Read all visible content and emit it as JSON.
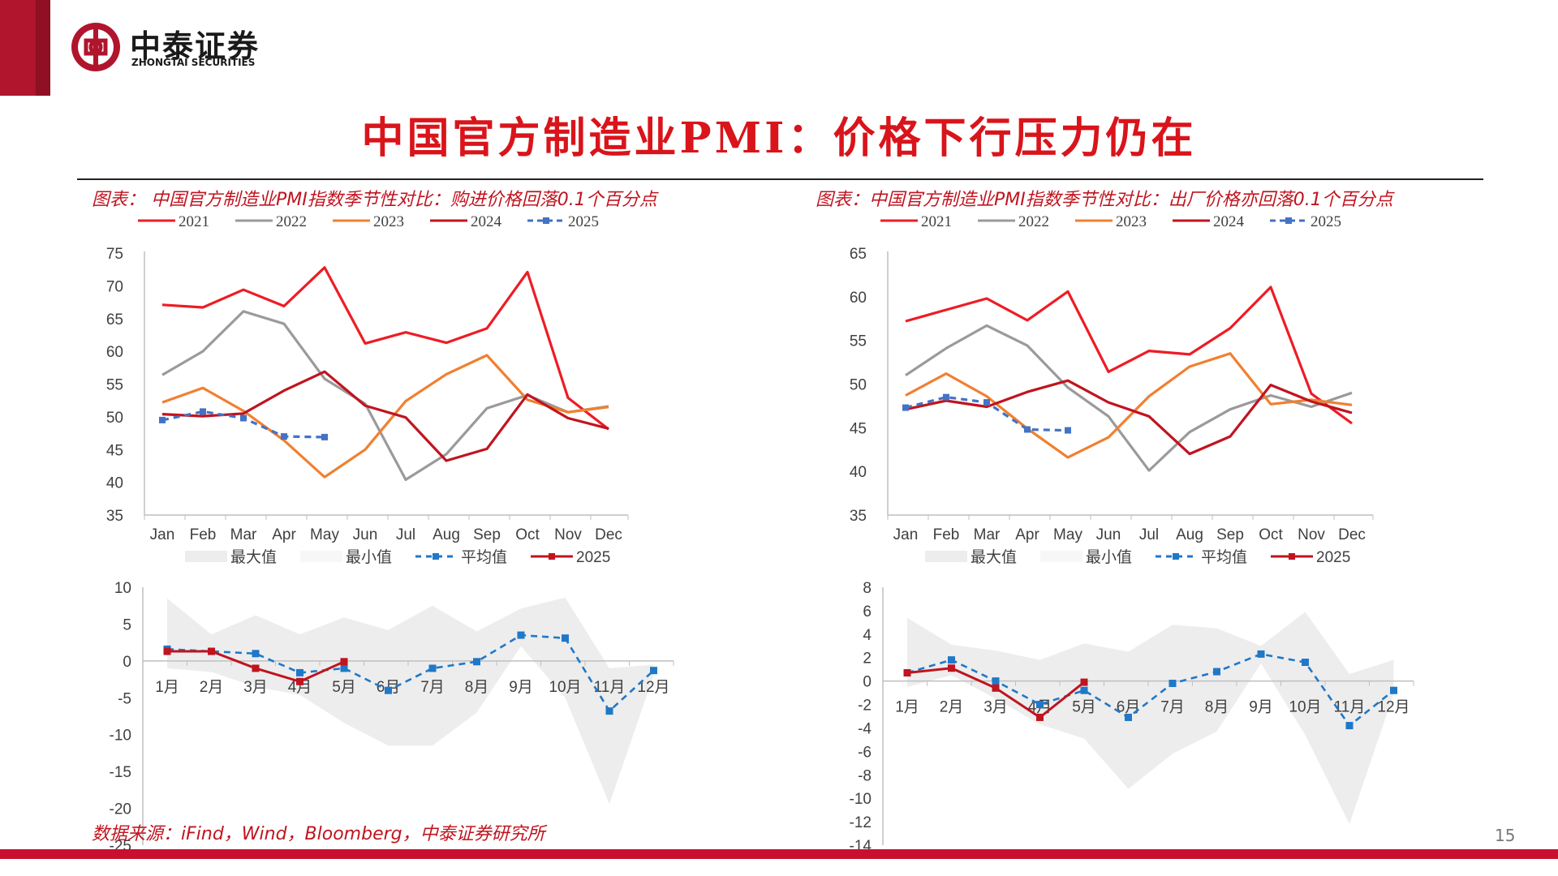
{
  "header": {
    "brand_cn": "中泰证券",
    "brand_en": "ZHONGTAI SECURITIES",
    "brand_color": "#b0152d"
  },
  "page_title": "中国官方制造业PMI：价格下行压力仍在",
  "footer": {
    "source_note": "数据来源：iFind，Wind，Bloomberg，中泰证券研究所",
    "page_number": "15"
  },
  "colors": {
    "y2021": "#ee1c25",
    "y2022": "#9a9a9a",
    "y2023": "#f08030",
    "y2024": "#c0141f",
    "y2025": "#4472c4",
    "avg": "#1f78c8",
    "band": "#ededed"
  },
  "chart_data": [
    {
      "type": "line",
      "caption": "图表： 中国官方制造业PMI指数季节性对比：购进价格回落0.1个百分点",
      "categories": [
        "Jan",
        "Feb",
        "Mar",
        "Apr",
        "May",
        "Jun",
        "Jul",
        "Aug",
        "Sep",
        "Oct",
        "Nov",
        "Dec"
      ],
      "ylim": [
        35,
        75
      ],
      "yticks": [
        35,
        40,
        45,
        50,
        55,
        60,
        65,
        70,
        75
      ],
      "series": [
        {
          "name": "2021",
          "values": [
            67.1,
            66.7,
            69.4,
            66.9,
            72.8,
            61.2,
            62.9,
            61.3,
            63.5,
            72.1,
            52.9,
            48.1
          ]
        },
        {
          "name": "2022",
          "values": [
            56.4,
            60.0,
            66.1,
            64.2,
            55.8,
            52.0,
            40.4,
            44.3,
            51.3,
            53.3,
            50.7,
            51.6
          ]
        },
        {
          "name": "2023",
          "values": [
            52.2,
            54.4,
            50.9,
            46.4,
            40.8,
            45.0,
            52.4,
            56.5,
            59.4,
            52.6,
            50.7,
            51.5
          ]
        },
        {
          "name": "2024",
          "values": [
            50.4,
            50.1,
            50.5,
            54.0,
            56.9,
            51.7,
            49.9,
            43.3,
            45.1,
            53.4,
            49.8,
            48.2
          ]
        },
        {
          "name": "2025",
          "values": [
            49.5,
            50.8,
            49.8,
            47.0,
            46.9,
            null,
            null,
            null,
            null,
            null,
            null,
            null
          ]
        }
      ],
      "sub": {
        "type": "area",
        "categories": [
          "1月",
          "2月",
          "3月",
          "4月",
          "5月",
          "6月",
          "7月",
          "8月",
          "9月",
          "10月",
          "11月",
          "12月"
        ],
        "ylim": [
          -25,
          10
        ],
        "yticks": [
          -25,
          -20,
          -15,
          -10,
          -5,
          0,
          5,
          10
        ],
        "legend": [
          "最大值",
          "最小值",
          "平均值",
          "2025"
        ],
        "max": [
          8.5,
          3.6,
          6.2,
          3.6,
          5.9,
          4.2,
          7.5,
          4.0,
          7.1,
          8.6,
          -1.0,
          -0.5
        ],
        "min": [
          -1.0,
          -1.5,
          -3.5,
          -4.6,
          -8.4,
          -11.5,
          -11.5,
          -7.0,
          2.0,
          -5.0,
          -19.4,
          -2.0
        ],
        "avg": [
          1.6,
          1.3,
          1.0,
          -1.6,
          -1.0,
          -4.0,
          -1.0,
          -0.1,
          3.5,
          3.1,
          -6.8,
          -1.3
        ],
        "y2025": [
          1.3,
          1.3,
          -1.0,
          -2.8,
          -0.1,
          null,
          null,
          null,
          null,
          null,
          null,
          null
        ]
      }
    },
    {
      "type": "line",
      "caption": "图表：中国官方制造业PMI指数季节性对比：出厂价格亦回落0.1个百分点",
      "categories": [
        "Jan",
        "Feb",
        "Mar",
        "Apr",
        "May",
        "Jun",
        "Jul",
        "Aug",
        "Sep",
        "Oct",
        "Nov",
        "Dec"
      ],
      "ylim": [
        35,
        65
      ],
      "yticks": [
        35,
        40,
        45,
        50,
        55,
        60,
        65
      ],
      "series": [
        {
          "name": "2021",
          "values": [
            57.2,
            58.5,
            59.8,
            57.3,
            60.6,
            51.4,
            53.8,
            53.4,
            56.4,
            61.1,
            48.9,
            45.5
          ]
        },
        {
          "name": "2022",
          "values": [
            51.0,
            54.1,
            56.7,
            54.4,
            49.6,
            46.3,
            40.1,
            44.5,
            47.1,
            48.7,
            47.4,
            49.0
          ]
        },
        {
          "name": "2023",
          "values": [
            48.7,
            51.2,
            48.6,
            44.9,
            41.6,
            43.9,
            48.6,
            52.0,
            53.5,
            47.7,
            48.2,
            47.6
          ]
        },
        {
          "name": "2024",
          "values": [
            47.1,
            48.1,
            47.4,
            49.1,
            50.4,
            47.9,
            46.3,
            42.0,
            44.0,
            49.9,
            48.0,
            46.7
          ]
        },
        {
          "name": "2025",
          "values": [
            47.3,
            48.5,
            47.9,
            44.8,
            44.7,
            null,
            null,
            null,
            null,
            null,
            null,
            null
          ]
        }
      ],
      "sub": {
        "type": "area",
        "categories": [
          "1月",
          "2月",
          "3月",
          "4月",
          "5月",
          "6月",
          "7月",
          "8月",
          "9月",
          "10月",
          "11月",
          "12月"
        ],
        "ylim": [
          -14,
          8
        ],
        "yticks": [
          -14,
          -12,
          -10,
          -8,
          -6,
          -4,
          -2,
          0,
          2,
          4,
          6,
          8
        ],
        "legend": [
          "最大值",
          "最小值",
          "平均值",
          "2025"
        ],
        "max": [
          5.4,
          3.1,
          2.6,
          1.8,
          3.2,
          2.5,
          4.8,
          4.5,
          3.0,
          5.9,
          0.6,
          1.8
        ],
        "min": [
          -0.5,
          0.5,
          -1.5,
          -3.7,
          -4.9,
          -9.2,
          -6.2,
          -4.3,
          1.5,
          -4.6,
          -12.2,
          -1.1
        ],
        "avg": [
          0.7,
          1.8,
          0.0,
          -2.0,
          -0.8,
          -3.1,
          -0.2,
          0.8,
          2.3,
          1.6,
          -3.8,
          -0.8
        ],
        "y2025": [
          0.7,
          1.1,
          -0.6,
          -3.1,
          -0.1,
          null,
          null,
          null,
          null,
          null,
          null,
          null
        ]
      }
    }
  ]
}
